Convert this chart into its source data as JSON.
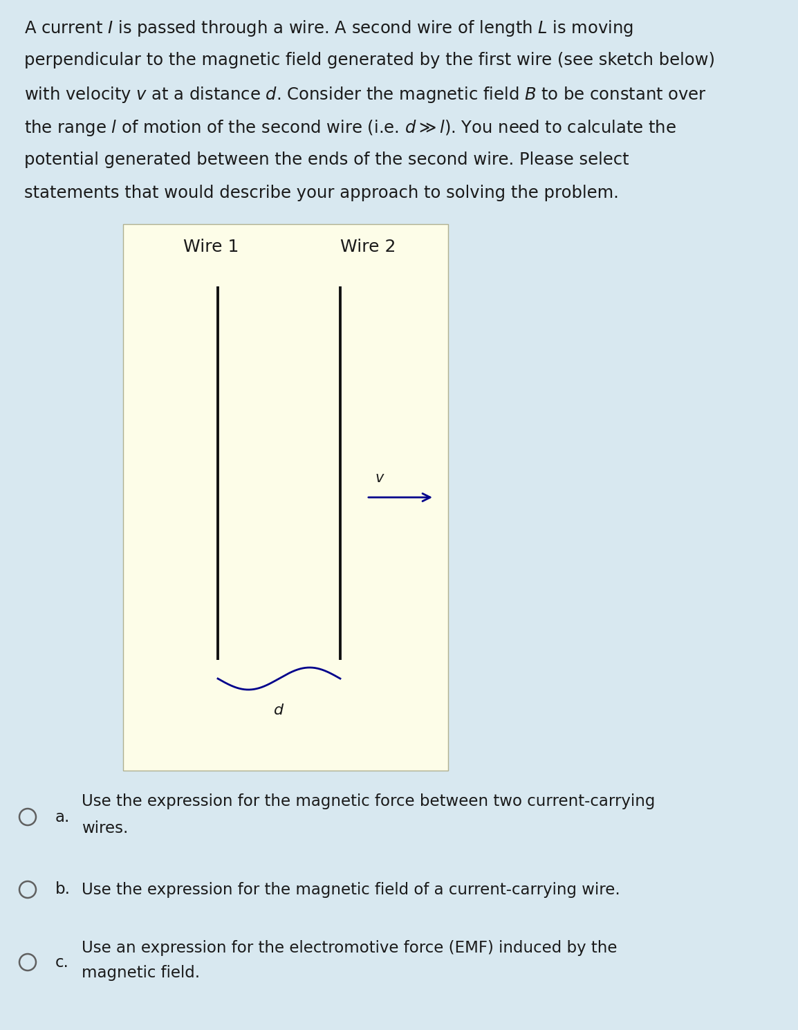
{
  "bg_color": "#d8e8f0",
  "sketch_bg_color": "#fdfde8",
  "sketch_border_color": "#b0b090",
  "text_color": "#1a1a1a",
  "wire_color": "#111111",
  "arrow_color": "#00008b",
  "brace_color": "#00008b",
  "font_size_paragraph": 17.5,
  "font_size_labels": 16,
  "font_size_options": 16.5,
  "font_size_option_label": 16.5
}
